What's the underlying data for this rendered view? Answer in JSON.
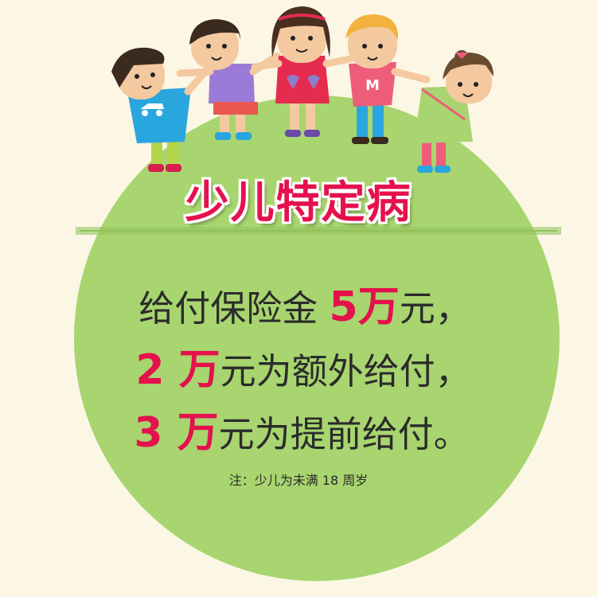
{
  "title": "少儿特定病",
  "lines": [
    {
      "pre": "给付保险金 ",
      "highlight": "5万",
      "post": "元，"
    },
    {
      "pre": "",
      "highlight": "2 万",
      "post": "元为额外给付，"
    },
    {
      "pre": "",
      "highlight": "3 万",
      "post": "元为提前给付。"
    }
  ],
  "note": "注：少儿为未满 18 周岁",
  "colors": {
    "background": "#fbf7e4",
    "circle": "#a8d56f",
    "highlight": "#e4114d",
    "text": "#2b2b2b"
  }
}
